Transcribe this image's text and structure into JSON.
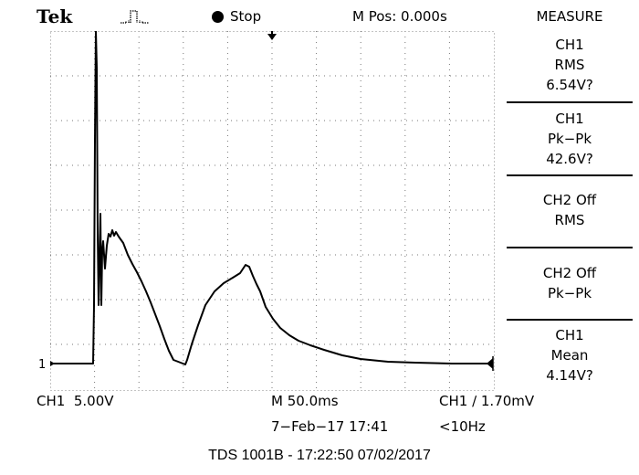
{
  "brand": "Tek",
  "status": {
    "run_state": "Stop",
    "position": "M Pos: 0.000s"
  },
  "measure": {
    "title": "MEASURE",
    "panels": [
      {
        "line1": "CH1",
        "line2": "RMS",
        "line3": "6.54V?"
      },
      {
        "line1": "CH1",
        "line2": "Pk−Pk",
        "line3": "42.6V?"
      },
      {
        "line1": "CH2 Off",
        "line2": "RMS",
        "line3": ""
      },
      {
        "line1": "CH2 Off",
        "line2": "Pk−Pk",
        "line3": ""
      },
      {
        "line1": "CH1",
        "line2": "Mean",
        "line3": "4.14V?"
      }
    ]
  },
  "channel_marker": "1",
  "bottom": {
    "ch1_scale": "CH1  5.00V",
    "timebase": "M 50.0ms",
    "trigger": "CH1 ∕ 1.70mV",
    "date_time": "7−Feb−17 17:41",
    "frequency": "<10Hz"
  },
  "caption": "TDS 1001B - 17:22:50   07/02/2017",
  "colors": {
    "background": "#ffffff",
    "trace": "#000000"
  },
  "icons": [
    "acquisition-envelope-icon",
    "stop-dot-icon",
    "trigger-position-arrow-icon",
    "ground-level-arrow-icon",
    "trigger-level-arrow-icon"
  ]
}
